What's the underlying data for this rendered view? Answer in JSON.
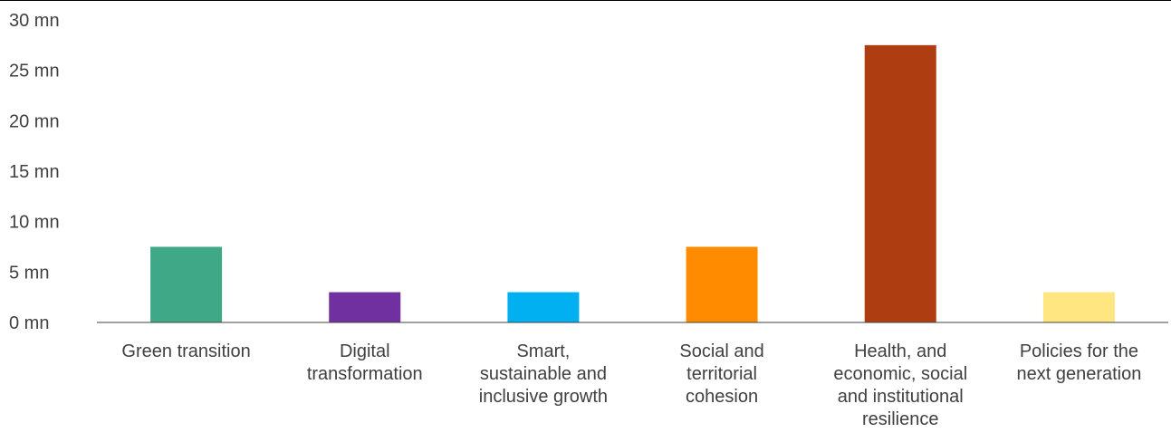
{
  "chart_data": {
    "type": "bar",
    "categories": [
      [
        "Green transition"
      ],
      [
        "Digital",
        "transformation"
      ],
      [
        "Smart,",
        "sustainable and",
        "inclusive growth"
      ],
      [
        "Social and",
        "territorial",
        "cohesion"
      ],
      [
        "Health, and",
        "economic, social",
        "and institutional",
        "resilience"
      ],
      [
        "Policies for the",
        "next generation"
      ]
    ],
    "values": [
      7.5,
      3,
      3,
      7.5,
      27.5,
      3
    ],
    "colors": [
      "#3fa886",
      "#7030a0",
      "#00b0f0",
      "#ff8c00",
      "#ae3d12",
      "#ffe680"
    ],
    "y_ticks": [
      "0 mn",
      "5 mn",
      "10 mn",
      "15 mn",
      "20 mn",
      "25 mn",
      "30 mn"
    ],
    "ylim": [
      0,
      30
    ],
    "title": "",
    "xlabel": "",
    "ylabel": "",
    "grid": false,
    "legend": "none"
  }
}
